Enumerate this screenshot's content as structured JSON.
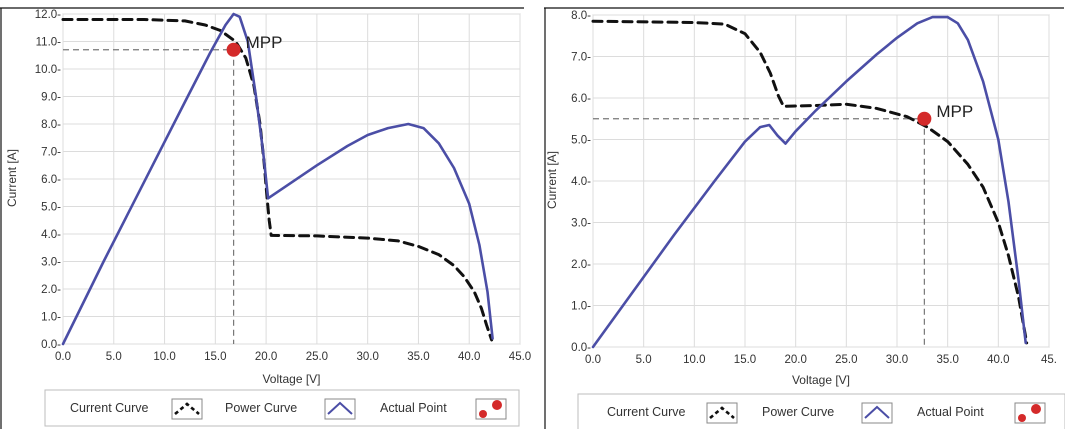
{
  "chart_data": [
    {
      "type": "line",
      "xlabel": "Voltage [V]",
      "ylabel": "Current [A]",
      "xlim": [
        0,
        45
      ],
      "ylim": [
        0,
        12
      ],
      "x_ticks": [
        "0.0",
        "5.0",
        "10.0",
        "15.0",
        "20.0",
        "25.0",
        "30.0",
        "35.0",
        "40.0",
        "45.0"
      ],
      "y_ticks": [
        "0.0-",
        "1.0-",
        "2.0-",
        "3.0-",
        "4.0-",
        "5.0-",
        "6.0-",
        "7.0-",
        "8.0-",
        "9.0-",
        "10.0-",
        "11.0-",
        "12.0-"
      ],
      "grid": true,
      "series": [
        {
          "name": "Current Curve",
          "style": "dashed",
          "color": "#111111",
          "points": [
            [
              0,
              11.8
            ],
            [
              8,
              11.8
            ],
            [
              12,
              11.75
            ],
            [
              14,
              11.6
            ],
            [
              15.5,
              11.4
            ],
            [
              17,
              11.0
            ],
            [
              18,
              10.4
            ],
            [
              18.8,
              9.4
            ],
            [
              19.4,
              8.0
            ],
            [
              19.8,
              6.6
            ],
            [
              20.1,
              5.3
            ],
            [
              20.3,
              4.5
            ],
            [
              20.5,
              3.95
            ],
            [
              25,
              3.93
            ],
            [
              30,
              3.85
            ],
            [
              33,
              3.75
            ],
            [
              35,
              3.55
            ],
            [
              37,
              3.25
            ],
            [
              38.5,
              2.85
            ],
            [
              39.5,
              2.45
            ],
            [
              40.5,
              1.9
            ],
            [
              41.2,
              1.3
            ],
            [
              41.7,
              0.7
            ],
            [
              42.2,
              0.15
            ]
          ]
        },
        {
          "name": "Power Curve",
          "style": "solid",
          "color": "#4b4ea6",
          "points": [
            [
              0,
              0
            ],
            [
              4,
              3.0
            ],
            [
              8,
              5.9
            ],
            [
              12,
              8.8
            ],
            [
              14.5,
              10.6
            ],
            [
              16,
              11.6
            ],
            [
              16.8,
              12.0
            ],
            [
              17.4,
              11.9
            ],
            [
              18.2,
              11.0
            ],
            [
              19,
              9.0
            ],
            [
              19.7,
              7.0
            ],
            [
              20.2,
              5.3
            ],
            [
              22,
              5.75
            ],
            [
              25,
              6.5
            ],
            [
              28,
              7.2
            ],
            [
              30,
              7.6
            ],
            [
              32,
              7.85
            ],
            [
              34,
              8.0
            ],
            [
              35.5,
              7.85
            ],
            [
              37,
              7.3
            ],
            [
              38.5,
              6.4
            ],
            [
              40,
              5.1
            ],
            [
              41,
              3.6
            ],
            [
              41.8,
              1.9
            ],
            [
              42.3,
              0.2
            ]
          ]
        }
      ],
      "mpp": {
        "label": "MPP",
        "x": 16.8,
        "y": 10.7,
        "color": "#d42a2a"
      },
      "legend": {
        "placement": "bottom",
        "items": [
          "Current Curve",
          "Power Curve",
          "Actual Point"
        ]
      }
    },
    {
      "type": "line",
      "xlabel": "Voltage [V]",
      "ylabel": "Current [A]",
      "xlim": [
        0,
        45
      ],
      "ylim": [
        0,
        8
      ],
      "x_ticks": [
        "0.0",
        "5.0",
        "10.0",
        "15.0",
        "20.0",
        "25.0",
        "30.0",
        "35.0",
        "40.0",
        "45."
      ],
      "y_ticks": [
        "0.0-",
        "1.0-",
        "2.0-",
        "3.0-",
        "4.0-",
        "5.0-",
        "6.0-",
        "7.0-",
        "8.0-"
      ],
      "grid": true,
      "series": [
        {
          "name": "Current Curve",
          "style": "dashed",
          "color": "#111111",
          "points": [
            [
              0,
              7.85
            ],
            [
              10,
              7.82
            ],
            [
              13,
              7.78
            ],
            [
              15,
              7.55
            ],
            [
              16.5,
              7.1
            ],
            [
              17.5,
              6.6
            ],
            [
              18.3,
              6.05
            ],
            [
              18.8,
              5.8
            ],
            [
              22,
              5.82
            ],
            [
              25,
              5.85
            ],
            [
              28,
              5.75
            ],
            [
              31,
              5.55
            ],
            [
              33,
              5.3
            ],
            [
              35,
              4.95
            ],
            [
              37,
              4.4
            ],
            [
              38.5,
              3.85
            ],
            [
              40,
              3.0
            ],
            [
              41,
              2.2
            ],
            [
              42,
              1.2
            ],
            [
              42.8,
              0.1
            ]
          ]
        },
        {
          "name": "Power Curve",
          "style": "solid",
          "color": "#4b4ea6",
          "points": [
            [
              0,
              0
            ],
            [
              4,
              1.35
            ],
            [
              8,
              2.7
            ],
            [
              12,
              4.0
            ],
            [
              15,
              4.95
            ],
            [
              16.5,
              5.3
            ],
            [
              17.4,
              5.35
            ],
            [
              18.2,
              5.1
            ],
            [
              19,
              4.9
            ],
            [
              20,
              5.2
            ],
            [
              22,
              5.7
            ],
            [
              25,
              6.4
            ],
            [
              28,
              7.05
            ],
            [
              30,
              7.45
            ],
            [
              32,
              7.8
            ],
            [
              33.5,
              7.95
            ],
            [
              35,
              7.95
            ],
            [
              36,
              7.8
            ],
            [
              37,
              7.4
            ],
            [
              38.5,
              6.4
            ],
            [
              40,
              5.0
            ],
            [
              41,
              3.5
            ],
            [
              42,
              1.6
            ],
            [
              42.7,
              0.1
            ]
          ]
        }
      ],
      "mpp": {
        "label": "MPP",
        "x": 32.7,
        "y": 5.5,
        "color": "#d42a2a"
      },
      "legend": {
        "placement": "bottom",
        "items": [
          "Current Curve",
          "Power Curve",
          "Actual Point"
        ]
      }
    }
  ]
}
